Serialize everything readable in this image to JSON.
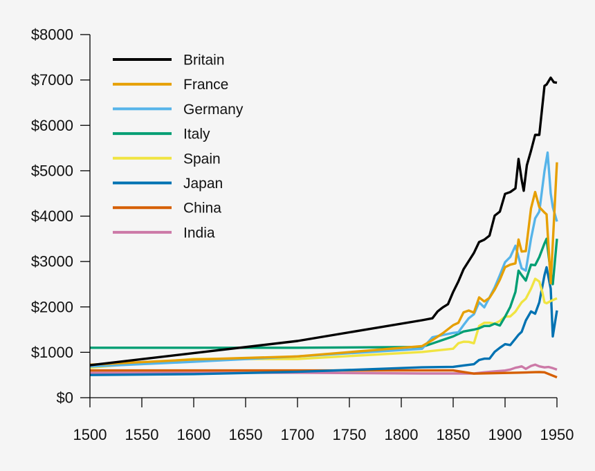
{
  "chart_data": {
    "type": "line",
    "title": "",
    "xlabel": "",
    "ylabel": "",
    "xlim": [
      1500,
      1950
    ],
    "ylim": [
      0,
      8000
    ],
    "x_ticks": [
      1500,
      1550,
      1600,
      1650,
      1700,
      1750,
      1800,
      1850,
      1900,
      1950
    ],
    "y_ticks": [
      0,
      1000,
      2000,
      3000,
      4000,
      5000,
      6000,
      7000,
      8000
    ],
    "x_tick_labels": [
      "1500",
      "1550",
      "1600",
      "1650",
      "1700",
      "1750",
      "1800",
      "1850",
      "1900",
      "1950"
    ],
    "y_tick_labels": [
      "$0",
      "$1000",
      "$2000",
      "$3000",
      "$4000",
      "$5000",
      "$6000",
      "$7000",
      "$8000"
    ],
    "grid": false,
    "legend_position": "top-left",
    "series": [
      {
        "name": "Britain",
        "color": "#000000",
        "x": [
          1500,
          1700,
          1820,
          1830,
          1835,
          1840,
          1845,
          1850,
          1855,
          1860,
          1865,
          1870,
          1875,
          1880,
          1885,
          1890,
          1895,
          1900,
          1905,
          1910,
          1913,
          1916,
          1918,
          1921,
          1925,
          1929,
          1933,
          1938,
          1940,
          1944,
          1947,
          1950
        ],
        "y": [
          714,
          1250,
          1706,
          1750,
          1900,
          1990,
          2060,
          2330,
          2560,
          2830,
          3010,
          3190,
          3430,
          3480,
          3570,
          4010,
          4100,
          4490,
          4530,
          4611,
          5260,
          4800,
          4560,
          5120,
          5440,
          5790,
          5790,
          6870,
          6900,
          7050,
          6950,
          6939
        ]
      },
      {
        "name": "France",
        "color": "#E69F00",
        "x": [
          1500,
          1600,
          1700,
          1820,
          1830,
          1840,
          1850,
          1855,
          1860,
          1865,
          1870,
          1875,
          1880,
          1885,
          1890,
          1895,
          1900,
          1905,
          1910,
          1913,
          1916,
          1920,
          1925,
          1929,
          1933,
          1938,
          1940,
          1944,
          1946,
          1948,
          1950
        ],
        "y": [
          727,
          841,
          910,
          1135,
          1270,
          1420,
          1597,
          1650,
          1880,
          1920,
          1876,
          2210,
          2120,
          2200,
          2380,
          2600,
          2876,
          2930,
          2960,
          3485,
          3220,
          3230,
          4170,
          4532,
          4200,
          4080,
          4040,
          2520,
          3400,
          4300,
          5186
        ]
      },
      {
        "name": "Germany",
        "color": "#56B4E9",
        "x": [
          1500,
          1600,
          1700,
          1820,
          1830,
          1840,
          1850,
          1855,
          1860,
          1865,
          1870,
          1875,
          1880,
          1885,
          1890,
          1895,
          1900,
          1905,
          1910,
          1913,
          1916,
          1920,
          1925,
          1929,
          1933,
          1938,
          1941,
          1944,
          1946,
          1950
        ],
        "y": [
          688,
          791,
          910,
          1077,
          1330,
          1380,
          1428,
          1440,
          1600,
          1750,
          1839,
          2100,
          1990,
          2210,
          2430,
          2700,
          2985,
          3100,
          3348,
          3100,
          2850,
          2800,
          3500,
          3950,
          4100,
          4994,
          5400,
          4500,
          4200,
          3881
        ]
      },
      {
        "name": "Italy",
        "color": "#009E73",
        "x": [
          1500,
          1600,
          1700,
          1820,
          1850,
          1860,
          1870,
          1875,
          1880,
          1885,
          1890,
          1895,
          1900,
          1905,
          1910,
          1913,
          1916,
          1920,
          1925,
          1929,
          1933,
          1938,
          1940,
          1944,
          1946,
          1950
        ],
        "y": [
          1100,
          1100,
          1100,
          1117,
          1350,
          1459,
          1499,
          1530,
          1580,
          1580,
          1630,
          1590,
          1785,
          2000,
          2330,
          2800,
          2700,
          2580,
          2930,
          2920,
          3100,
          3400,
          3500,
          2750,
          2500,
          3502
        ]
      },
      {
        "name": "Spain",
        "color": "#F0E442",
        "x": [
          1500,
          1600,
          1700,
          1820,
          1850,
          1855,
          1860,
          1865,
          1870,
          1875,
          1880,
          1885,
          1890,
          1895,
          1900,
          1905,
          1910,
          1913,
          1916,
          1920,
          1925,
          1929,
          1933,
          1936,
          1938,
          1940,
          1944,
          1946,
          1950
        ],
        "y": [
          661,
          853,
          853,
          1008,
          1079,
          1200,
          1233,
          1230,
          1200,
          1580,
          1650,
          1650,
          1630,
          1690,
          1786,
          1790,
          1895,
          2000,
          2100,
          2180,
          2400,
          2620,
          2560,
          2320,
          2100,
          2080,
          2130,
          2150,
          2189
        ]
      },
      {
        "name": "Japan",
        "color": "#0072B2",
        "x": [
          1500,
          1600,
          1700,
          1820,
          1850,
          1860,
          1870,
          1875,
          1880,
          1885,
          1890,
          1895,
          1900,
          1905,
          1910,
          1913,
          1916,
          1920,
          1925,
          1929,
          1933,
          1938,
          1940,
          1944,
          1946,
          1950
        ],
        "y": [
          500,
          520,
          570,
          669,
          679,
          710,
          737,
          830,
          860,
          860,
          1010,
          1100,
          1180,
          1160,
          1300,
          1387,
          1450,
          1700,
          1900,
          1850,
          2100,
          2700,
          2874,
          2400,
          1350,
          1921
        ]
      },
      {
        "name": "China",
        "color": "#D55E00",
        "x": [
          1500,
          1600,
          1700,
          1820,
          1850,
          1870,
          1890,
          1913,
          1929,
          1933,
          1938,
          1950
        ],
        "y": [
          600,
          600,
          600,
          600,
          600,
          530,
          540,
          552,
          562,
          565,
          560,
          448
        ]
      },
      {
        "name": "India",
        "color": "#CC79A7",
        "x": [
          1500,
          1600,
          1700,
          1820,
          1850,
          1870,
          1880,
          1890,
          1900,
          1905,
          1910,
          1913,
          1916,
          1920,
          1925,
          1929,
          1933,
          1938,
          1942,
          1946,
          1950
        ],
        "y": [
          550,
          550,
          550,
          533,
          533,
          533,
          560,
          580,
          599,
          620,
          660,
          673,
          690,
          635,
          700,
          728,
          690,
          668,
          676,
          651,
          619
        ]
      }
    ]
  }
}
